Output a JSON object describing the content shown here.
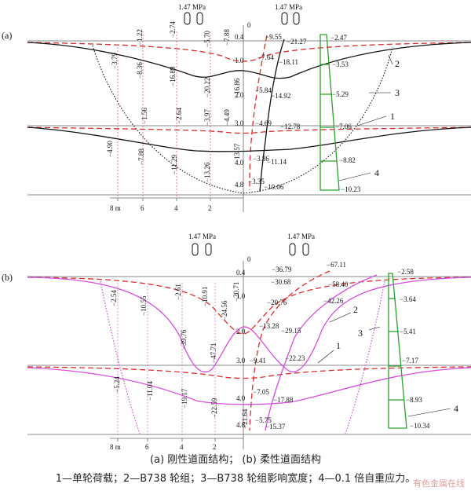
{
  "panels": [
    {
      "label": "(a)",
      "wheel_loads": [
        "1.47 MPa",
        "1.47 MPa"
      ],
      "axis_zero": "0",
      "depths": [
        "0.4",
        "1.0",
        "2.0",
        "3.0",
        "4.0",
        "4.8"
      ],
      "x_ticks": [
        "8 m",
        "6",
        "4",
        "2"
      ],
      "curve_numbers": [
        "1",
        "2",
        "3",
        "4"
      ],
      "values": [
        "−1.22",
        "−2.74",
        "−5.70",
        "−7.88",
        "−9.55",
        "−21.27",
        "−2.47",
        "−3.79",
        "−8.36",
        "−16.89",
        "−20.22",
        "−16.86",
        "−7.64",
        "−18.11",
        "−3.53",
        "−5.84",
        "−14.92",
        "−5.29",
        "−1.56",
        "−2.64",
        "−3.97",
        "−4.49",
        "−4.69",
        "−12.78",
        "−7.06",
        "−4.90",
        "−7.88",
        "−11.29",
        "−13.26",
        "−13.57",
        "−3.86",
        "−11.14",
        "−8.82",
        "−3.35",
        "−10.06",
        "−10.23"
      ]
    },
    {
      "label": "(b)",
      "wheel_loads": [
        "1.47 MPa",
        "1.47 MPa"
      ],
      "axis_zero": "0",
      "depths": [
        "0.4",
        "1.0",
        "2.0",
        "3.0",
        "4.0",
        "4.8"
      ],
      "x_ticks": [
        "8 m",
        "6",
        "4",
        "2"
      ],
      "curve_numbers": [
        "1",
        "2",
        "3",
        "4"
      ],
      "values": [
        "−36.79",
        "−67.11",
        "−2.58",
        "−20.71",
        "−30.68",
        "−58.40",
        "−2.54",
        "−10.55",
        "−2.61",
        "−10.91",
        "−24.56",
        "−20.76",
        "−42.26",
        "−3.64",
        "−39.76",
        "−47.71",
        "−13.28",
        "−29.15",
        "−5.41",
        "−9.41",
        "−22.23",
        "−7.17",
        "−5.24",
        "−11.04",
        "−19.17",
        "−22.59",
        "−21.64",
        "−7.05",
        "−17.88",
        "−8.93",
        "−5.75",
        "−15.37",
        "−10.34"
      ]
    }
  ],
  "caption": {
    "line1": "(a) 刚性道面结构； (b) 柔性道面结构",
    "line2": "1—单轮荷载；2—B738 轮组；3—B738 轮组影响宽度；4—0.1 倍自重应力。"
  },
  "watermark": "有色金属在线",
  "colors": {
    "single_wheel": "#d62d2d",
    "b738_rigid": "#111111",
    "b738_flexible": "#d24fd8",
    "gravity": "#2ca02c",
    "structure_line": "#777777"
  }
}
